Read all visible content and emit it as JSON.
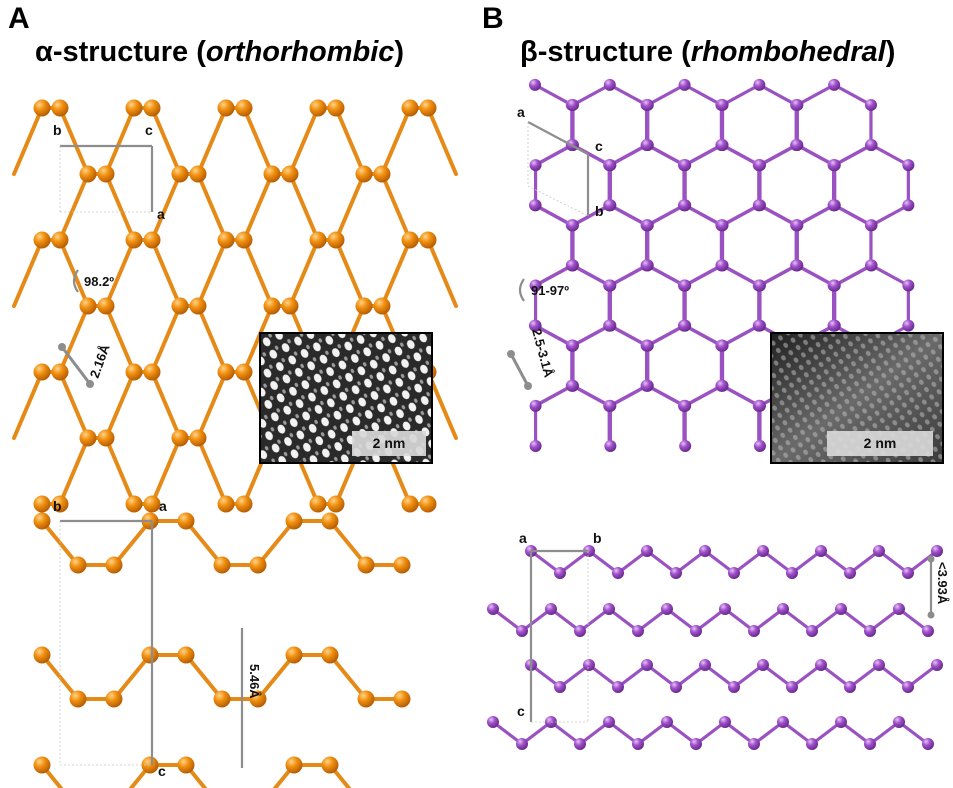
{
  "panels": [
    {
      "id": "A",
      "letter": "A",
      "title_prefix": "α-structure (",
      "title_italic": "orthorhombic",
      "title_suffix": ")",
      "lattice_labels": {
        "b": "b",
        "c": "c",
        "a": "a"
      },
      "angle": "98.2º",
      "bond_length": "2.16Å",
      "side_labels": {
        "b": "b",
        "a": "a",
        "c": "c"
      },
      "layer_spacing": "5.46Å",
      "inset_scale": "2 nm",
      "atom_color": "#e8870f",
      "bond_color": "#e58a16"
    },
    {
      "id": "B",
      "letter": "B",
      "title_prefix": "β-structure (",
      "title_italic": "rhombohedral",
      "title_suffix": ")",
      "lattice_labels": {
        "a": "a",
        "c": "c",
        "b": "b"
      },
      "angle": "91-97º",
      "bond_length": "2.5-3.1Å",
      "side_labels": {
        "a": "a",
        "b": "b",
        "c": "c"
      },
      "layer_spacing": "<3.93Å",
      "inset_scale": "2 nm",
      "atom_color": "#9b4cc4",
      "bond_color": "#9a52c2"
    }
  ]
}
